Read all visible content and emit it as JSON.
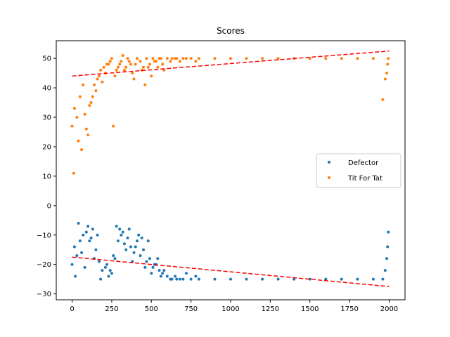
{
  "chart_data": {
    "type": "scatter",
    "title": "Scores",
    "xlabel": "",
    "ylabel": "",
    "xlim": [
      -100,
      2100
    ],
    "ylim": [
      -32,
      56
    ],
    "x_ticks": [
      0,
      250,
      500,
      750,
      1000,
      1250,
      1500,
      1750,
      2000
    ],
    "y_ticks": [
      -30,
      -20,
      -10,
      0,
      10,
      20,
      30,
      40,
      50
    ],
    "x_tick_labels": [
      "0",
      "250",
      "500",
      "750",
      "1000",
      "1250",
      "1500",
      "1750",
      "2000"
    ],
    "y_tick_labels": [
      "−30",
      "−20",
      "−10",
      "0",
      "10",
      "20",
      "30",
      "40",
      "50"
    ],
    "legend_position": "center-right",
    "grid": false,
    "colors": {
      "Defector": "#1f77b4",
      "Tit For Tat": "#ff7f0e",
      "trend": "#ff0000"
    },
    "series": [
      {
        "name": "Defector",
        "color": "#1f77b4",
        "x": [
          0,
          15,
          30,
          50,
          70,
          90,
          110,
          130,
          150,
          170,
          190,
          210,
          230,
          250,
          270,
          290,
          310,
          330,
          350,
          370,
          390,
          410,
          430,
          450,
          470,
          490,
          510,
          530,
          550,
          570,
          600,
          630,
          660,
          700,
          750,
          800,
          900,
          1000,
          1100,
          1200,
          1300,
          1400,
          1500,
          1600,
          1700,
          1800,
          1900,
          1960,
          1975,
          1985,
          1990,
          1995,
          40,
          100,
          120,
          160,
          280,
          300,
          320,
          360,
          420,
          440,
          480,
          20,
          60,
          80,
          140,
          180,
          220,
          240,
          260,
          340,
          380,
          400,
          460,
          500,
          520,
          540,
          560,
          580,
          620,
          650,
          680,
          720,
          780
        ],
        "y": [
          -20,
          -14,
          -17,
          -12,
          -10,
          -9,
          -12,
          -8,
          -15,
          -19,
          -22,
          -21,
          -24,
          -23,
          -18,
          -12,
          -10,
          -13,
          -11,
          -14,
          -16,
          -12,
          -17,
          -15,
          -19,
          -18,
          -21,
          -20,
          -22,
          -23,
          -24,
          -25,
          -25,
          -25,
          -25,
          -25,
          -25,
          -25,
          -25,
          -25,
          -25,
          -25,
          -25,
          -25,
          -25,
          -25,
          -25,
          -25,
          -22,
          -18,
          -14,
          -9,
          -6,
          -7,
          -11,
          -10,
          -7,
          -8,
          -9,
          -8,
          -10,
          -11,
          -12,
          -24,
          -16,
          -21,
          -18,
          -25,
          -20,
          -22,
          -17,
          -15,
          -19,
          -14,
          -21,
          -23,
          -20,
          -18,
          -24,
          -22,
          -25,
          -24,
          -25,
          -23,
          -24
        ]
      },
      {
        "name": "Tit For Tat",
        "color": "#ff7f0e",
        "x": [
          0,
          15,
          30,
          50,
          70,
          90,
          110,
          130,
          150,
          170,
          190,
          210,
          230,
          250,
          270,
          290,
          310,
          330,
          350,
          370,
          390,
          410,
          430,
          450,
          470,
          490,
          510,
          530,
          550,
          570,
          600,
          630,
          660,
          700,
          750,
          800,
          900,
          1000,
          1100,
          1200,
          1300,
          1400,
          1500,
          1600,
          1700,
          1800,
          1900,
          1960,
          1975,
          1985,
          1990,
          1995,
          10,
          40,
          60,
          80,
          100,
          120,
          140,
          160,
          180,
          200,
          220,
          240,
          260,
          280,
          300,
          320,
          340,
          360,
          380,
          400,
          440,
          460,
          480,
          500,
          520,
          540,
          560,
          580,
          620,
          650,
          680,
          720,
          780
        ],
        "y": [
          27,
          33,
          30,
          37,
          41,
          26,
          34,
          37,
          39,
          44,
          42,
          45,
          48,
          50,
          44,
          47,
          49,
          46,
          50,
          48,
          43,
          50,
          49,
          47,
          50,
          48,
          50,
          49,
          50,
          48,
          50,
          50,
          50,
          50,
          50,
          50,
          50,
          50,
          50,
          50,
          50,
          50,
          50,
          50,
          50,
          50,
          50,
          36,
          43,
          45,
          48,
          50,
          11,
          22,
          19,
          31,
          24,
          35,
          41,
          43,
          46,
          47,
          48,
          49,
          27,
          46,
          48,
          51,
          47,
          49,
          45,
          48,
          46,
          41,
          47,
          44,
          49,
          47,
          50,
          46,
          49,
          50,
          49,
          50,
          49
        ]
      }
    ],
    "trend_lines": [
      {
        "x": [
          0,
          2000
        ],
        "y": [
          -17.5,
          -27.5
        ]
      },
      {
        "x": [
          0,
          2000
        ],
        "y": [
          44,
          52.5
        ]
      }
    ]
  }
}
